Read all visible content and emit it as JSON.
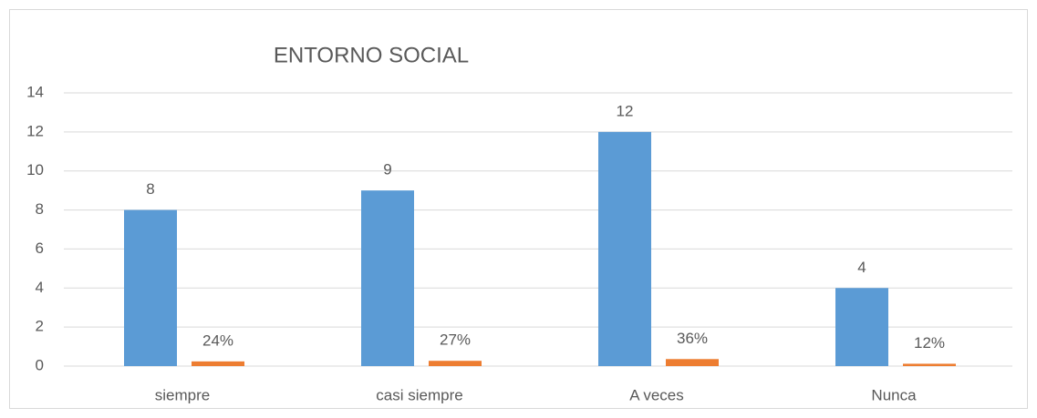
{
  "chart_data": {
    "type": "bar",
    "title": "ENTORNO SOCIAL",
    "categories": [
      "siempre",
      "casi siempre",
      "A veces",
      "Nunca"
    ],
    "series": [
      {
        "color": "#5b9bd5",
        "values": [
          8,
          9,
          12,
          4
        ]
      },
      {
        "color": "#ed7d31",
        "values": [
          0.24,
          0.27,
          0.36,
          0.12
        ],
        "value_labels": [
          "24%",
          "27%",
          "36%",
          "12%"
        ]
      }
    ],
    "ylim": [
      0,
      14
    ],
    "yticks": [
      0,
      2,
      4,
      6,
      8,
      10,
      12,
      14
    ],
    "grid": true
  }
}
